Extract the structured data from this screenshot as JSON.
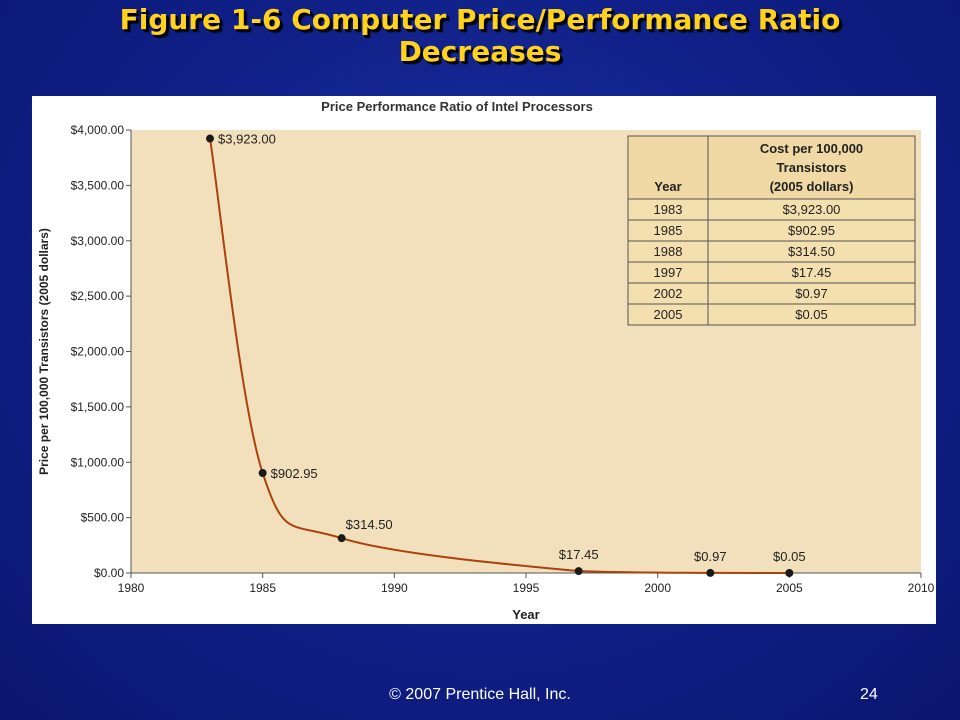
{
  "slide": {
    "title_line1": "Figure 1-6 Computer Price/Performance Ratio",
    "title_line2": "Decreases",
    "copyright": "© 2007 Prentice Hall, Inc.",
    "page_number": "24"
  },
  "colors": {
    "background": "#0f1f86",
    "title": "#ffd21e",
    "plot_bg": "#f2e0bd",
    "curve": "#a9420c",
    "table_header_bg": "#f1d9a6",
    "table_row_bg": "#f4dfae"
  },
  "chart_data": {
    "type": "line",
    "title": "Price Performance Ratio of Intel Processors",
    "xlabel": "Year",
    "ylabel": "Price per 100,000 Transistors (2005 dollars)",
    "xlim": [
      1980,
      2010
    ],
    "ylim": [
      0,
      4000
    ],
    "x_ticks": [
      "1980",
      "1985",
      "1990",
      "1995",
      "2000",
      "2005",
      "2010"
    ],
    "y_ticks": [
      "$0.00",
      "$500.00",
      "$1,000.00",
      "$1,500.00",
      "$2,000.00",
      "$2,500.00",
      "$3,000.00",
      "$3,500.00",
      "$4,000.00"
    ],
    "grid": false,
    "points": [
      {
        "x": 1983,
        "y": 3923.0,
        "label": "$3,923.00"
      },
      {
        "x": 1985,
        "y": 902.95,
        "label": "$902.95"
      },
      {
        "x": 1988,
        "y": 314.5,
        "label": "$314.50"
      },
      {
        "x": 1997,
        "y": 17.45,
        "label": "$17.45"
      },
      {
        "x": 2002,
        "y": 0.97,
        "label": "$0.97"
      },
      {
        "x": 2005,
        "y": 0.05,
        "label": "$0.05"
      }
    ],
    "table": {
      "headers": [
        "Year",
        "Cost per 100,000 Transistors (2005 dollars)"
      ],
      "header_lines": [
        "Cost per 100,000",
        "Transistors",
        "(2005 dollars)"
      ],
      "rows": [
        [
          "1983",
          "$3,923.00"
        ],
        [
          "1985",
          "$902.95"
        ],
        [
          "1988",
          "$314.50"
        ],
        [
          "1997",
          "$17.45"
        ],
        [
          "2002",
          "$0.97"
        ],
        [
          "2005",
          "$0.05"
        ]
      ]
    }
  }
}
